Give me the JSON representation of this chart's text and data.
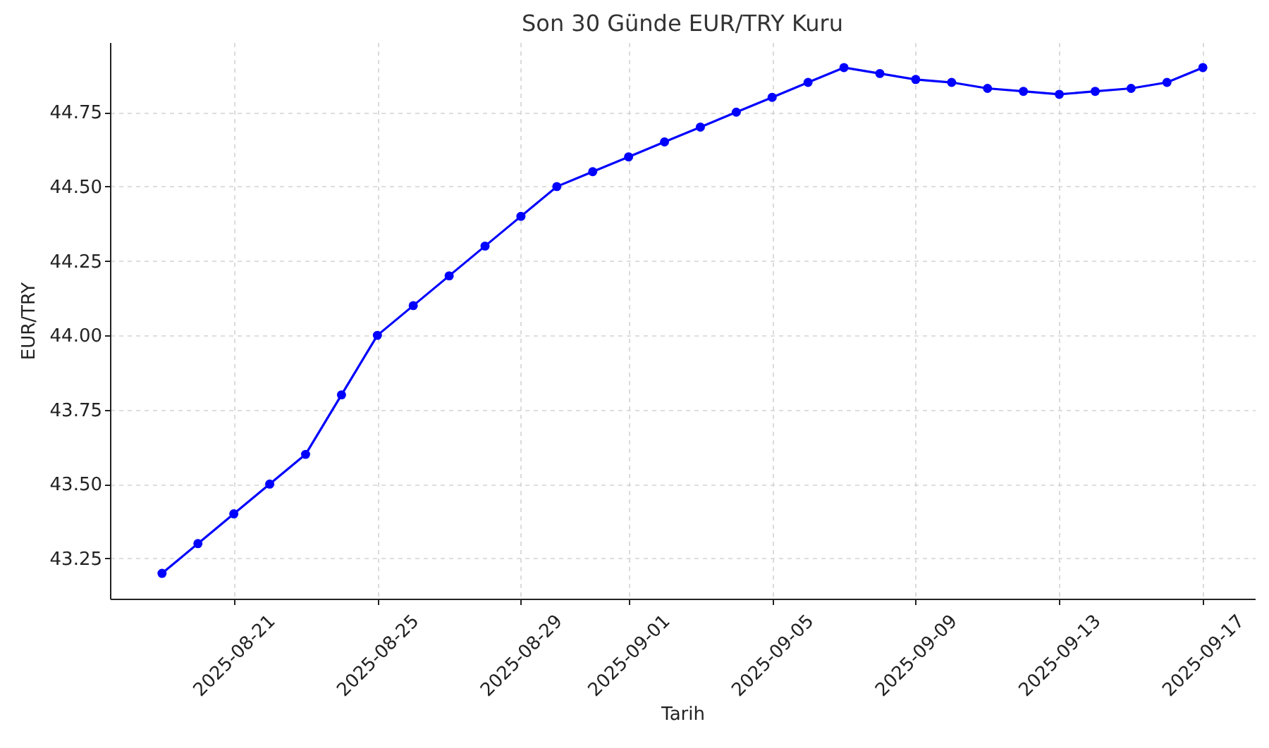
{
  "chart_data": {
    "type": "line",
    "title": "Son 30 Günde EUR/TRY Kuru",
    "xlabel": "Tarih",
    "ylabel": "EUR/TRY",
    "x": [
      "2025-08-19",
      "2025-08-20",
      "2025-08-21",
      "2025-08-22",
      "2025-08-23",
      "2025-08-24",
      "2025-08-25",
      "2025-08-26",
      "2025-08-27",
      "2025-08-28",
      "2025-08-29",
      "2025-08-30",
      "2025-08-31",
      "2025-09-01",
      "2025-09-02",
      "2025-09-03",
      "2025-09-04",
      "2025-09-05",
      "2025-09-06",
      "2025-09-07",
      "2025-09-08",
      "2025-09-09",
      "2025-09-10",
      "2025-09-11",
      "2025-09-12",
      "2025-09-13",
      "2025-09-14",
      "2025-09-15",
      "2025-09-16",
      "2025-09-17"
    ],
    "series": [
      {
        "color": "#0000ff",
        "values": [
          43.2,
          43.3,
          43.4,
          43.5,
          43.6,
          43.8,
          44.0,
          44.1,
          44.2,
          44.3,
          44.4,
          44.5,
          44.55,
          44.6,
          44.65,
          44.7,
          44.75,
          44.8,
          44.85,
          44.9,
          44.88,
          44.86,
          44.85,
          44.83,
          44.82,
          44.81,
          44.82,
          44.83,
          44.85,
          44.9
        ]
      }
    ],
    "xlim": [
      "2025-08-17T13:12",
      "2025-09-18T10:48"
    ],
    "xticks": [
      "2025-08-21",
      "2025-08-25",
      "2025-08-29",
      "2025-09-01",
      "2025-09-05",
      "2025-09-09",
      "2025-09-13",
      "2025-09-17"
    ],
    "ylim": [
      43.115,
      44.985
    ],
    "yticks": [
      43.25,
      {
        "value": 43.5,
        "label": "43.50"
      },
      43.75,
      {
        "value": 44.0,
        "label": "44.00"
      },
      44.25,
      {
        "value": 44.5,
        "label": "44.50"
      },
      44.75
    ],
    "grid": true,
    "marker": "circle",
    "line_style": "solid"
  }
}
